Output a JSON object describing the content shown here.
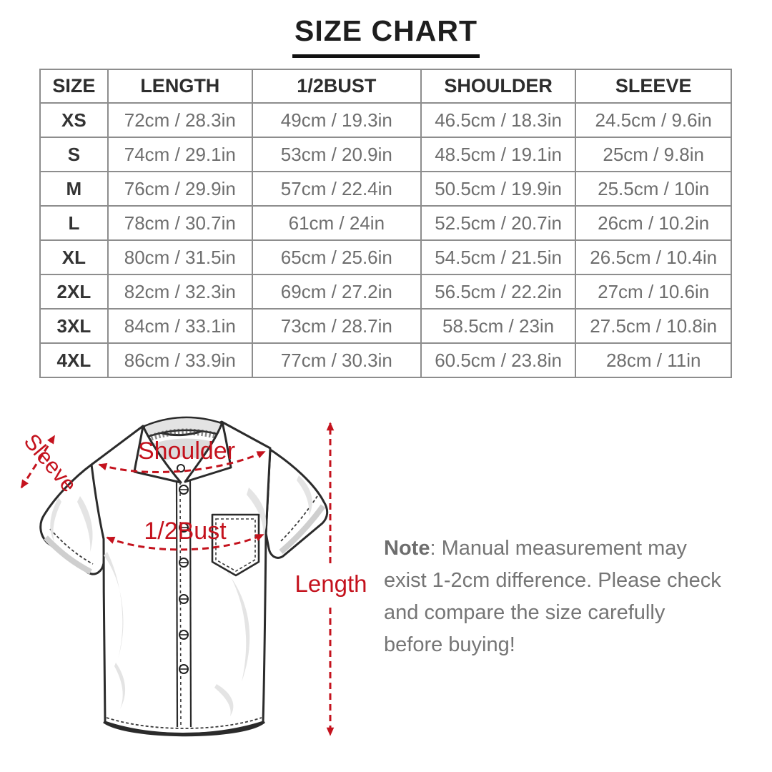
{
  "page": {
    "title": "SIZE CHART"
  },
  "size_table": {
    "headers": [
      "SIZE",
      "LENGTH",
      "1/2BUST",
      "SHOULDER",
      "SLEEVE"
    ],
    "rows": [
      [
        "XS",
        "72cm / 28.3in",
        "49cm / 19.3in",
        "46.5cm / 18.3in",
        "24.5cm / 9.6in"
      ],
      [
        "S",
        "74cm / 29.1in",
        "53cm / 20.9in",
        "48.5cm / 19.1in",
        "25cm / 9.8in"
      ],
      [
        "M",
        "76cm / 29.9in",
        "57cm / 22.4in",
        "50.5cm / 19.9in",
        "25.5cm / 10in"
      ],
      [
        "L",
        "78cm / 30.7in",
        "61cm / 24in",
        "52.5cm / 20.7in",
        "26cm / 10.2in"
      ],
      [
        "XL",
        "80cm / 31.5in",
        "65cm / 25.6in",
        "54.5cm / 21.5in",
        "26.5cm / 10.4in"
      ],
      [
        "2XL",
        "82cm / 32.3in",
        "69cm / 27.2in",
        "56.5cm / 22.2in",
        "27cm / 10.6in"
      ],
      [
        "3XL",
        "84cm / 33.1in",
        "73cm / 28.7in",
        "58.5cm / 23in",
        "27.5cm / 10.8in"
      ],
      [
        "4XL",
        "86cm / 33.9in",
        "77cm / 30.3in",
        "60.5cm / 23.8in",
        "28cm / 11in"
      ]
    ]
  },
  "diagram": {
    "labels": {
      "sleeve": "Sleeve",
      "shoulder": "Shoulder",
      "half_bust": "1/2Bust",
      "length": "Length"
    },
    "accent_color": "#c4121d"
  },
  "note": {
    "label": "Note",
    "text": ": Manual measurement may exist 1-2cm difference. Please check and compare the size carefully before buying!"
  }
}
